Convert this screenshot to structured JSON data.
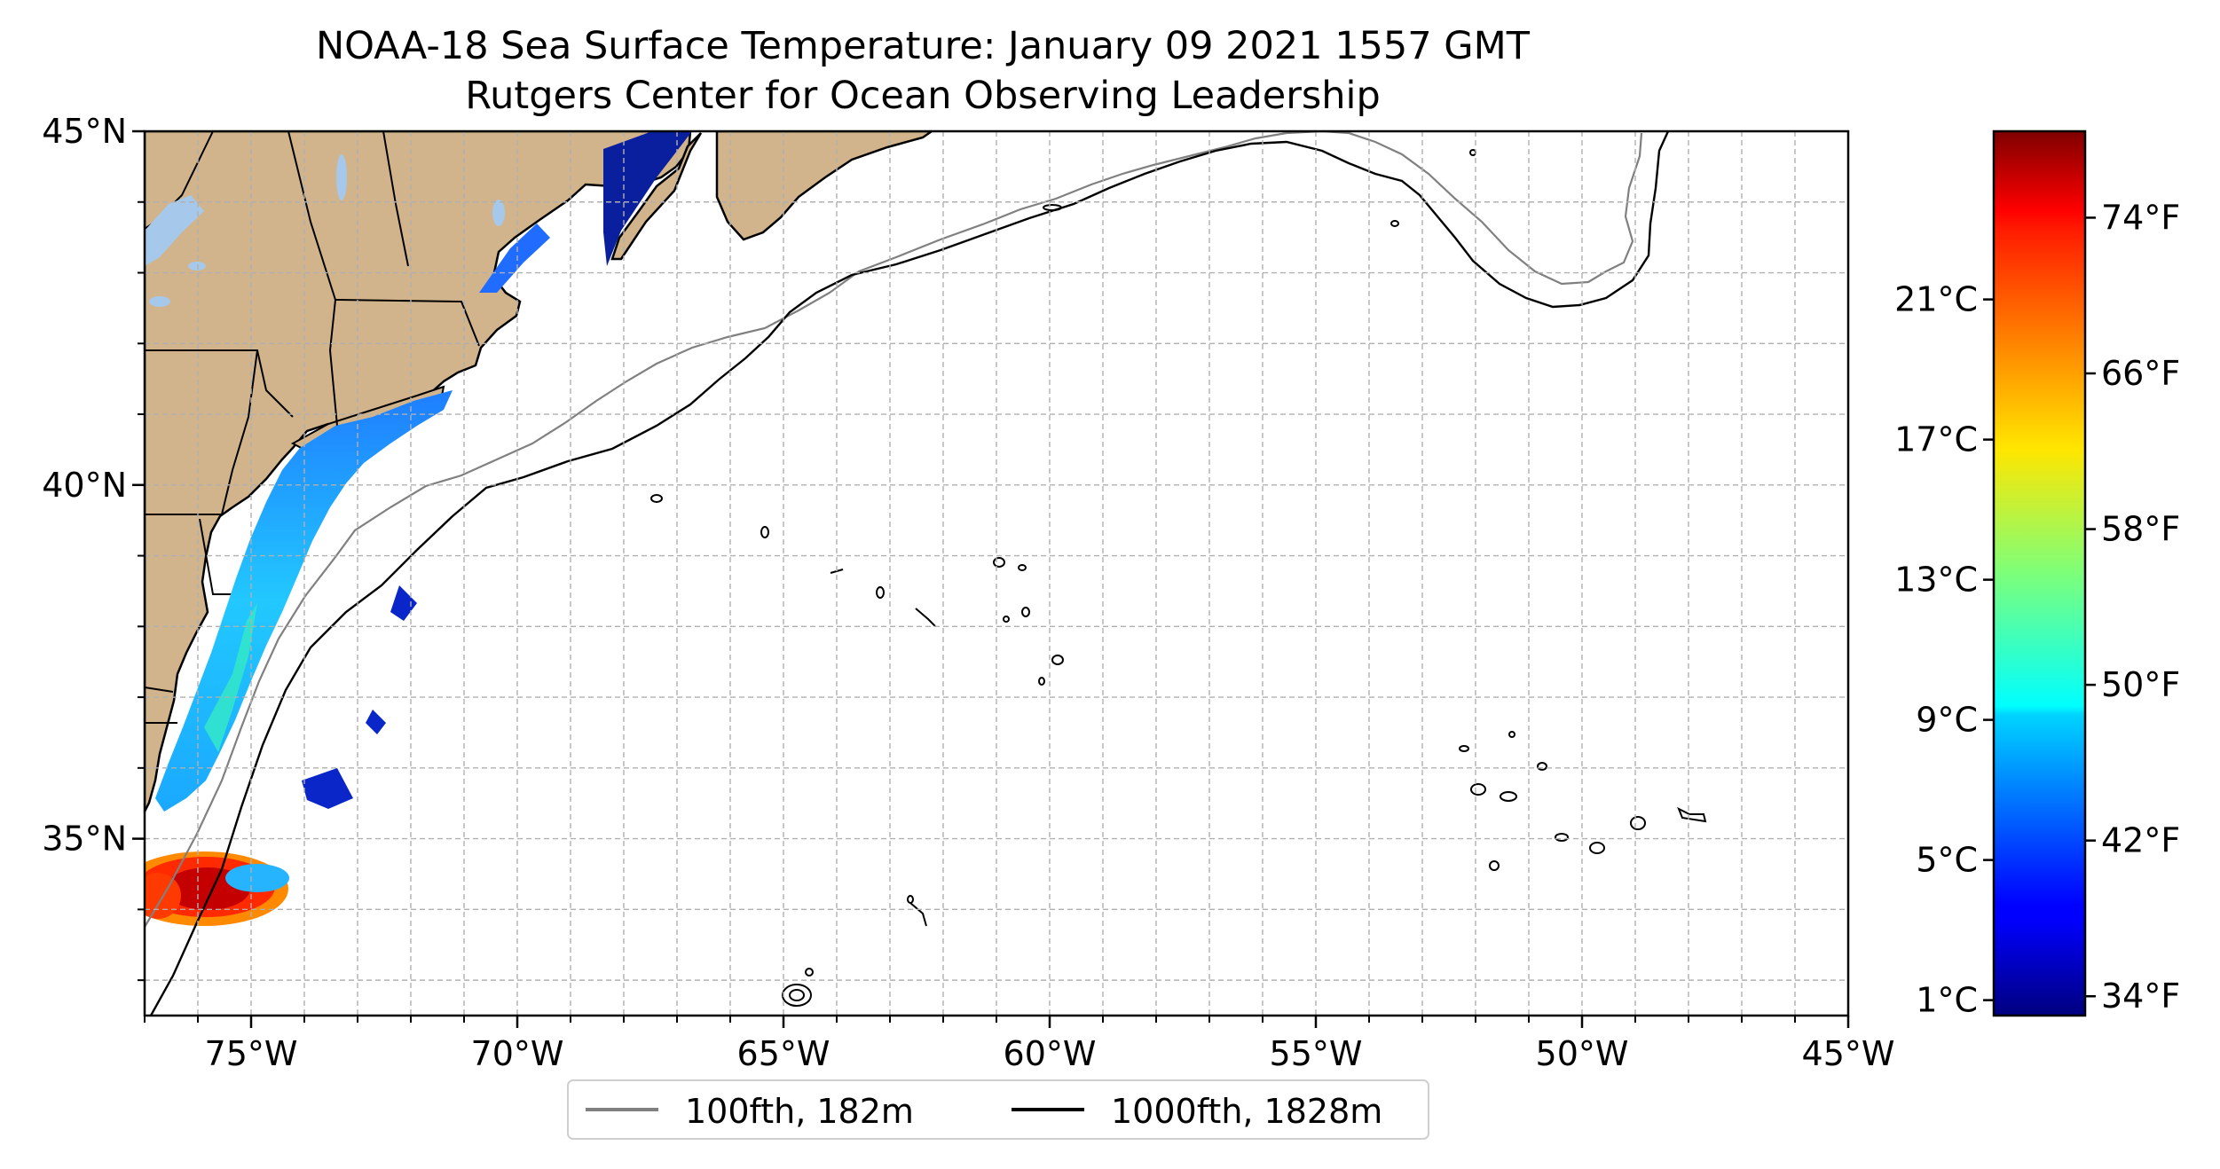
{
  "title_line1": "NOAA-18 Sea Surface Temperature: January 09 2021 1557 GMT",
  "title_line2": "Rutgers Center for Ocean Observing Leadership",
  "map": {
    "lon_range": [
      -77,
      -45
    ],
    "lat_range": [
      32.5,
      45
    ],
    "lon_tick_values": [
      -75,
      -70,
      -65,
      -60,
      -55,
      -50,
      -45
    ],
    "lon_tick_labels": [
      "75°W",
      "70°W",
      "65°W",
      "60°W",
      "55°W",
      "50°W",
      "45°W"
    ],
    "lat_tick_values": [
      35,
      40,
      45
    ],
    "lat_tick_labels": [
      "35°N",
      "40°N",
      "45°N"
    ],
    "gridlines": true,
    "gridline_step_lon": 1,
    "gridline_step_lat": 1,
    "land_color": "#d2b48c",
    "ocean_color": "#ffffff",
    "lake_color": "#a6c8ea"
  },
  "legend": {
    "placement": "bottom-center",
    "items": [
      {
        "label": "100fth, 182m",
        "color": "#808080"
      },
      {
        "label": "1000fth, 1828m",
        "color": "#000000"
      }
    ]
  },
  "colorbar": {
    "colormap": "jet",
    "range_c": [
      0.56,
      25.8
    ],
    "celsius_ticks": [
      {
        "value": 1,
        "label": "1°C"
      },
      {
        "value": 5,
        "label": "5°C"
      },
      {
        "value": 9,
        "label": "9°C"
      },
      {
        "value": 13,
        "label": "13°C"
      },
      {
        "value": 17,
        "label": "17°C"
      },
      {
        "value": 21,
        "label": "21°C"
      }
    ],
    "fahrenheit_ticks": [
      {
        "value": 34,
        "label": "34°F"
      },
      {
        "value": 42,
        "label": "42°F"
      },
      {
        "value": 50,
        "label": "50°F"
      },
      {
        "value": 58,
        "label": "58°F"
      },
      {
        "value": 66,
        "label": "66°F"
      },
      {
        "value": 74,
        "label": "74°F"
      }
    ]
  }
}
